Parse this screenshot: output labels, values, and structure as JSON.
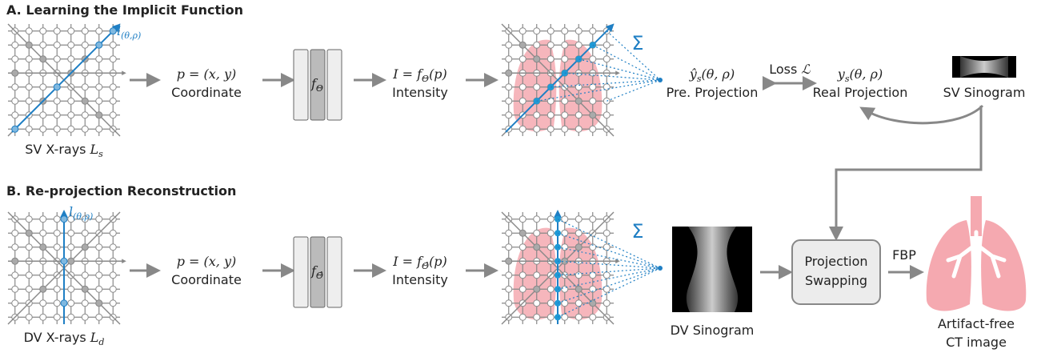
{
  "section_a": {
    "title": "A. Learning the Implicit Function",
    "ray": {
      "symbol": "l",
      "subscript": "(θ,ρ)"
    },
    "xrays": {
      "label": "SV X-rays",
      "symbol": "L",
      "subscript": "s"
    },
    "coordinate": {
      "formula": "p = (x, y)",
      "label": "Coordinate"
    },
    "network": {
      "symbol": "f",
      "subscript": "Θ"
    },
    "intensity": {
      "formula": "I = f",
      "subscript": "Θ",
      "argument": "(p)",
      "label": "Intensity"
    },
    "sum": "Σ",
    "predicted": {
      "symbol": "ŷ",
      "subscript": "s",
      "argument": "(θ, ρ)",
      "label": "Pre. Projection"
    },
    "loss": {
      "label": "Loss",
      "symbol": "ℒ"
    },
    "real": {
      "symbol": "y",
      "subscript": "s",
      "argument": "(θ, ρ)",
      "label": "Real Projection"
    },
    "sinogram": "SV Sinogram"
  },
  "section_b": {
    "title": "B. Re-projection Reconstruction",
    "ray": {
      "symbol": "l",
      "subscript": "(θ,ρ)"
    },
    "xrays": {
      "label": "DV X-rays",
      "symbol": "L",
      "subscript": "d"
    },
    "coordinate": {
      "formula": "p = (x, y)",
      "label": "Coordinate"
    },
    "network": {
      "symbol": "f",
      "subscript": "Θ̂"
    },
    "intensity": {
      "formula": "I = f",
      "subscript": "Θ̂",
      "argument": "(p)",
      "label": "Intensity"
    },
    "sum": "Σ",
    "sinogram": "DV Sinogram",
    "swap": [
      "Projection",
      "Swapping"
    ],
    "fbp": "FBP",
    "output": [
      "Artifact-free",
      "CT image"
    ]
  }
}
